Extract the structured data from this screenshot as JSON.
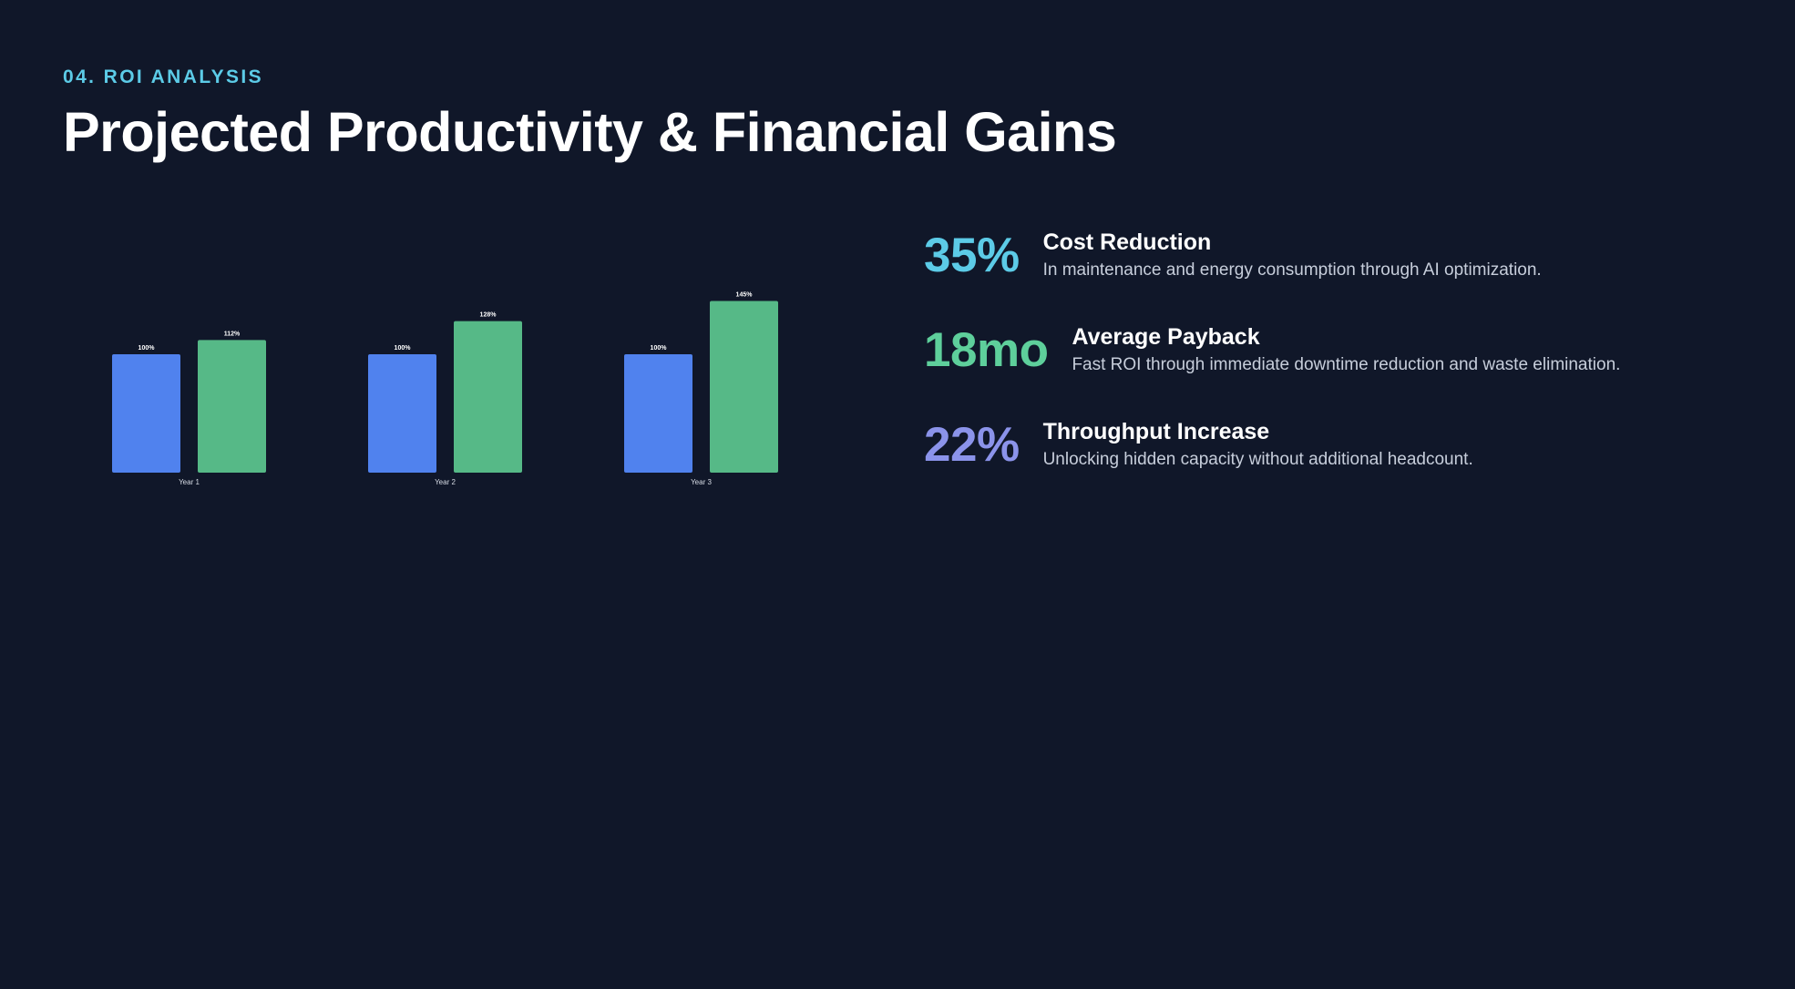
{
  "header": {
    "eyebrow": "04. ROI ANALYSIS",
    "title": "Projected Productivity & Financial Gains"
  },
  "colors": {
    "background": "#101729",
    "baseline_bar": "#5082ee",
    "projected_bar": "#56b987",
    "eyebrow": "#5ccbe7"
  },
  "chart_data": {
    "type": "bar",
    "categories": [
      "Year 1",
      "Year 2",
      "Year 3"
    ],
    "series": [
      {
        "values": [
          100,
          100,
          100
        ],
        "labels": [
          "100%",
          "100%",
          "100%"
        ],
        "color": "#5082ee"
      },
      {
        "values": [
          112,
          128,
          145
        ],
        "labels": [
          "112%",
          "128%",
          "145%"
        ],
        "color": "#56b987"
      }
    ],
    "title": "",
    "xlabel": "",
    "ylabel": "",
    "ylim": [
      0,
      145
    ],
    "grid": false,
    "legend": "none"
  },
  "stats": [
    {
      "value": "35%",
      "value_color": "#5ccbe7",
      "title": "Cost Reduction",
      "description": "In maintenance and energy consumption through AI optimization."
    },
    {
      "value": "18mo",
      "value_color": "#5ecf9b",
      "title": "Average Payback",
      "description": "Fast ROI through immediate downtime reduction and waste elimination."
    },
    {
      "value": "22%",
      "value_color": "#8b93ea",
      "title": "Throughput Increase",
      "description": "Unlocking hidden capacity without additional headcount."
    }
  ]
}
